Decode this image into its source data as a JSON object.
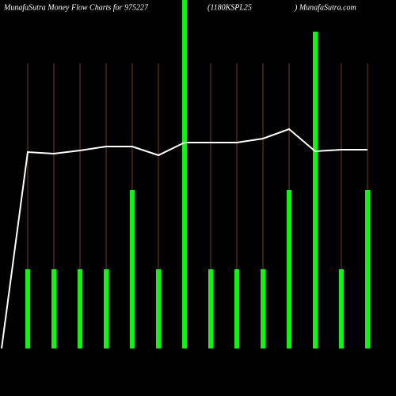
{
  "chart_data": {
    "type": "bar",
    "title": "MunafaSutra  Money Flow  Charts for 975227",
    "subtitle": "(1180KSPL25",
    "site": ") MunafaSutra.com",
    "x": [
      1,
      2,
      3,
      4,
      5,
      6,
      7,
      8,
      9,
      10,
      11,
      12,
      13,
      14
    ],
    "values": [
      100,
      100,
      100,
      100,
      200,
      100,
      440,
      100,
      100,
      100,
      200,
      400,
      100,
      200
    ],
    "color": "#00ff00",
    "line": {
      "color": "#ffffff",
      "x": [
        0,
        1,
        2,
        3,
        4,
        5,
        6,
        7,
        8,
        9,
        10,
        11,
        12,
        13,
        14
      ],
      "values": [
        0,
        248,
        246,
        250,
        255,
        255,
        244,
        260,
        260,
        260,
        265,
        277,
        249,
        251,
        251
      ]
    },
    "xlim": [
      0,
      14
    ],
    "ylim": [
      0,
      440
    ],
    "grid_color": "#7a3d12"
  }
}
